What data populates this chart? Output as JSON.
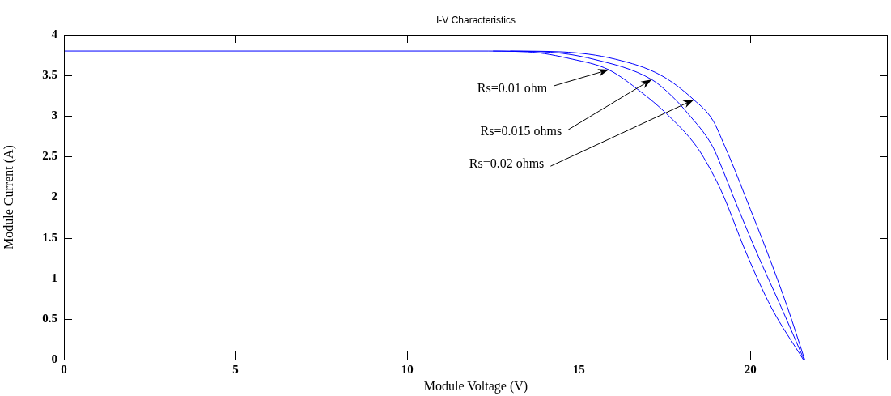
{
  "chart_data": {
    "type": "line",
    "title": "I-V Characteristics",
    "xlabel": "Module Voltage (V)",
    "ylabel": "Module Current (A)",
    "xlim": [
      0,
      24
    ],
    "xticks": [
      0,
      5,
      10,
      15,
      20
    ],
    "ylim": [
      0,
      4
    ],
    "yticks": [
      0,
      0.5,
      1,
      1.5,
      2,
      2.5,
      3,
      3.5,
      4
    ],
    "grid": false,
    "legend": false,
    "marker": "none",
    "line_style": "solid",
    "series": [
      {
        "color": "#0000ff",
        "x": [
          0,
          12,
          13.5,
          14.81,
          15.87,
          16.8,
          17.55,
          18.42,
          18.85,
          19.2,
          19.88,
          20.61,
          21.54
        ],
        "values": [
          3.8,
          3.8,
          3.79,
          3.7,
          3.57,
          3.3,
          3.03,
          2.63,
          2.33,
          2.03,
          1.31,
          0.64,
          0
        ]
      },
      {
        "color": "#0000ff",
        "x": [
          12.5,
          14,
          15.42,
          17.12,
          17.7,
          18.18,
          18.89,
          19.2,
          19.48,
          20.19,
          20.9,
          21.56
        ],
        "values": [
          3.8,
          3.79,
          3.7,
          3.45,
          3.25,
          3.03,
          2.63,
          2.33,
          2.03,
          1.31,
          0.64,
          0
        ]
      },
      {
        "color": "#0000ff",
        "x": [
          13,
          14.5,
          16.06,
          17.4,
          18.35,
          18.9,
          19.25,
          19.55,
          19.83,
          20.5,
          21.08,
          21.58
        ],
        "values": [
          3.8,
          3.79,
          3.7,
          3.5,
          3.2,
          2.95,
          2.63,
          2.33,
          2.03,
          1.31,
          0.64,
          0
        ]
      }
    ],
    "annotations": [
      {
        "text": "Rs=0.01 ohm",
        "x": 15.87,
        "y": 3.57
      },
      {
        "text": "Rs=0.015 ohms",
        "x": 17.12,
        "y": 3.45
      },
      {
        "text": "Rs=0.02 ohms",
        "x": 18.35,
        "y": 3.2
      }
    ]
  }
}
